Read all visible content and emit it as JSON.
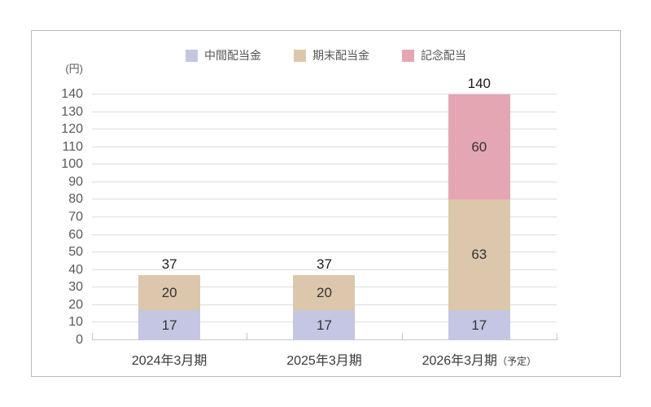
{
  "chart_data": {
    "type": "bar",
    "stacked": true,
    "title": "",
    "unit_label": "(円)",
    "categories": [
      {
        "label": "2024年3月期",
        "suffix": ""
      },
      {
        "label": "2025年3月期",
        "suffix": ""
      },
      {
        "label": "2026年3月期",
        "suffix": "（予定）"
      }
    ],
    "series": [
      {
        "name": "中間配当金",
        "color": "#c4c6e3",
        "values": [
          17,
          17,
          17
        ]
      },
      {
        "name": "期末配当金",
        "color": "#dcc7ac",
        "values": [
          20,
          20,
          63
        ]
      },
      {
        "name": "記念配当",
        "color": "#e5a6b3",
        "values": [
          0,
          0,
          60
        ]
      }
    ],
    "totals": [
      37,
      37,
      140
    ],
    "ylim": [
      0,
      140
    ],
    "ytick_step": 10,
    "grid": true,
    "legend_position": "top",
    "colors": {
      "grid": "#dcdcdc",
      "axis": "#c6c6c6",
      "tick_label": "#595959",
      "value_label": "#333333",
      "total_label": "#1a1a1a"
    }
  }
}
